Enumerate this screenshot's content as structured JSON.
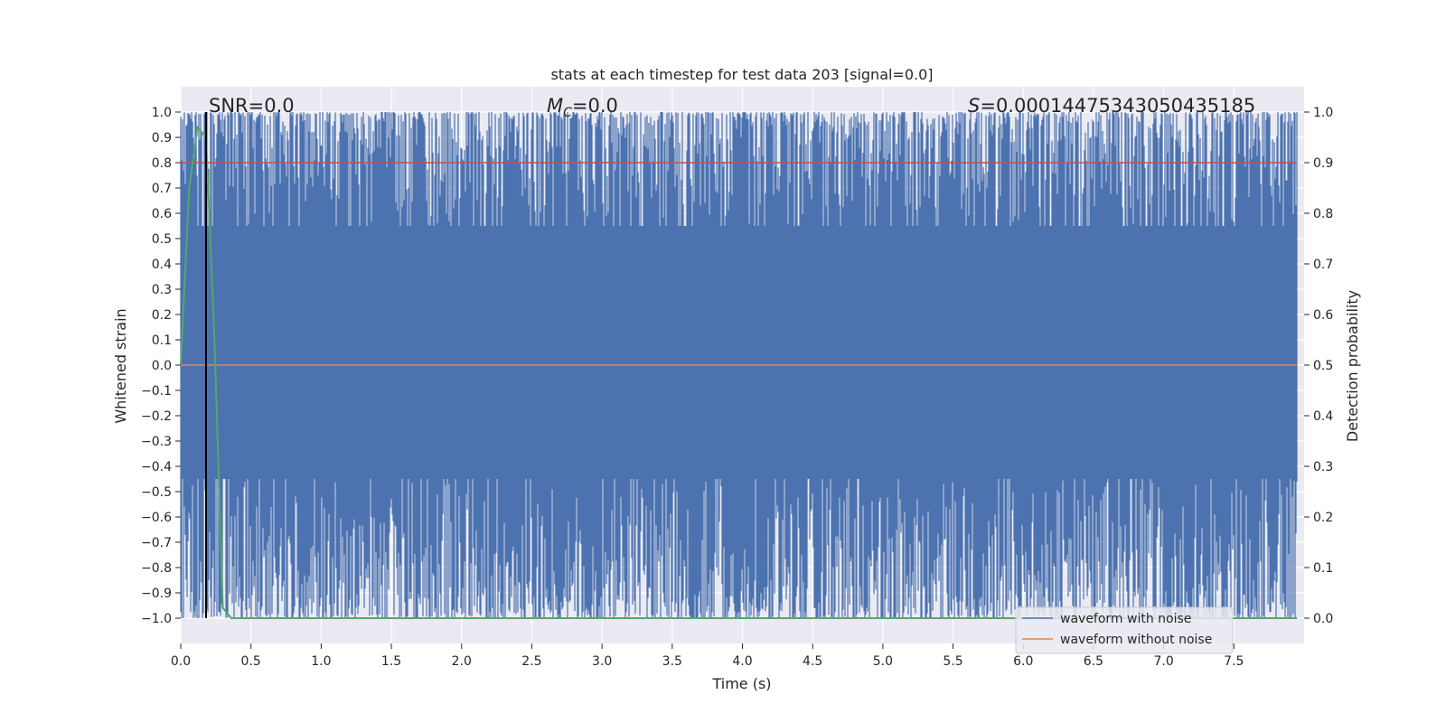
{
  "chart_data": {
    "type": "line",
    "title": "stats at each timestep for test data 203 [signal=0.0]",
    "xlabel": "Time (s)",
    "ylabel": "Whitened strain",
    "ylabel_right": "Detection probability",
    "xlim": [
      0.0,
      8.0
    ],
    "ylim": [
      -1.1,
      1.1
    ],
    "ylim_right": [
      -0.05,
      1.05
    ],
    "x_ticks": [
      "0.0",
      "0.5",
      "1.0",
      "1.5",
      "2.0",
      "2.5",
      "3.0",
      "3.5",
      "4.0",
      "4.5",
      "5.0",
      "5.5",
      "6.0",
      "6.5",
      "7.0",
      "7.5"
    ],
    "y_ticks": [
      "1.0",
      "0.9",
      "0.8",
      "0.7",
      "0.6",
      "0.5",
      "0.4",
      "0.3",
      "0.2",
      "0.1",
      "0.0",
      "−0.1",
      "−0.2",
      "−0.3",
      "−0.4",
      "−0.5",
      "−0.6",
      "−0.7",
      "−0.8",
      "−0.9",
      "−1.0"
    ],
    "y_right_ticks": [
      "1.0",
      "0.9",
      "0.8",
      "0.7",
      "0.6",
      "0.5",
      "0.4",
      "0.3",
      "0.2",
      "0.1",
      "0.0"
    ],
    "grid": true,
    "legend_position": "bottom-right",
    "annotations": {
      "snr": "SNR=0.0",
      "mc_symbol": "M",
      "mc_sub": "C",
      "mc_value": "=0.0",
      "s_symbol": "S",
      "s_value": "=0.00014475343050435185"
    },
    "series": [
      {
        "name": "waveform with noise",
        "color": "#4c72b0",
        "description_range": [
          -1.0,
          1.0
        ]
      },
      {
        "name": "waveform without noise",
        "color": "#dd8452",
        "values_x": [
          0.0,
          7.95
        ],
        "values_y": [
          0.0,
          0.0
        ]
      },
      {
        "color": "#55a868",
        "axis": "right",
        "x": [
          0.0,
          0.06,
          0.12,
          0.18,
          0.24,
          0.3,
          0.36,
          7.95
        ],
        "y": [
          0.5,
          0.85,
          0.97,
          0.95,
          0.55,
          0.02,
          0.0,
          0.0
        ]
      },
      {
        "color": "#c44e52",
        "axis": "right",
        "x": [
          0.0,
          7.95
        ],
        "y": [
          0.9,
          0.9
        ]
      },
      {
        "color": "#000000",
        "type": "vline",
        "x": 0.18
      }
    ]
  }
}
